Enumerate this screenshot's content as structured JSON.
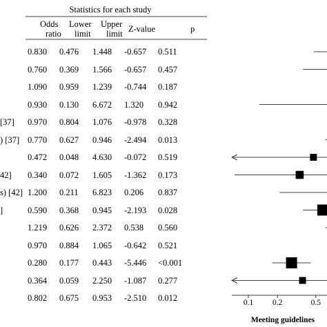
{
  "chart_data": {
    "type": "forest",
    "header": {
      "group_title": "Statistics for each study",
      "columns": [
        {
          "key": "odds_ratio",
          "lines": [
            "Odds",
            "ratio"
          ]
        },
        {
          "key": "lower",
          "lines": [
            "Lower",
            "limit"
          ]
        },
        {
          "key": "upper",
          "lines": [
            "Upper",
            "limit"
          ]
        },
        {
          "key": "z",
          "lines": [
            "Z-value"
          ]
        },
        {
          "key": "p",
          "lines": [
            "p"
          ]
        }
      ]
    },
    "rows": [
      {
        "label": "",
        "odds_ratio": "0.830",
        "lower": "0.476",
        "upper": "1.448",
        "z": "-0.657",
        "p": "0.511",
        "or": 0.83,
        "lo": 0.476,
        "hi": 1.448,
        "w": 1.0
      },
      {
        "label": "",
        "odds_ratio": "0.760",
        "lower": "0.369",
        "upper": "1.566",
        "z": "-0.657",
        "p": "0.457",
        "or": 0.76,
        "lo": 0.369,
        "hi": 1.566,
        "w": 0.85
      },
      {
        "label": "",
        "odds_ratio": "1.090",
        "lower": "0.959",
        "upper": "1.239",
        "z": "-0.744",
        "p": "0.187",
        "or": 1.09,
        "lo": 0.959,
        "hi": 1.239,
        "w": 1.0
      },
      {
        "label": "",
        "odds_ratio": "0.930",
        "lower": "0.130",
        "upper": "6.672",
        "z": "1.320",
        "p": "0.942",
        "or": 0.93,
        "lo": 0.13,
        "hi": 6.672,
        "w": 0.4
      },
      {
        "label": "[37]",
        "odds_ratio": "0.970",
        "lower": "0.804",
        "upper": "1.076",
        "z": "-0.978",
        "p": "0.328",
        "or": 0.97,
        "lo": 0.804,
        "hi": 1.076,
        "w": 0.5
      },
      {
        "label": ") [37]",
        "odds_ratio": "0.770",
        "lower": "0.627",
        "upper": "0.946",
        "z": "-2.494",
        "p": "0.013",
        "or": 0.77,
        "lo": 0.627,
        "hi": 0.946,
        "w": 0.9
      },
      {
        "label": "",
        "odds_ratio": "0.472",
        "lower": "0.048",
        "upper": "4.630",
        "z": "-0.072",
        "p": "0.519",
        "or": 0.472,
        "lo": 0.048,
        "hi": 4.63,
        "w": 0.45
      },
      {
        "label": "42]",
        "odds_ratio": "0.340",
        "lower": "0.072",
        "upper": "1.605",
        "z": "-1.362",
        "p": "0.173",
        "or": 0.34,
        "lo": 0.072,
        "hi": 1.605,
        "w": 0.6
      },
      {
        "label": "s) [42]",
        "odds_ratio": "1.200",
        "lower": "0.211",
        "upper": "6.823",
        "z": "0.206",
        "p": "0.837",
        "or": 1.2,
        "lo": 0.211,
        "hi": 6.823,
        "w": 0.4
      },
      {
        "label": "]",
        "odds_ratio": "0.590",
        "lower": "0.368",
        "upper": "0.945",
        "z": "-2.193",
        "p": "0.028",
        "or": 0.59,
        "lo": 0.368,
        "hi": 0.945,
        "w": 1.0
      },
      {
        "label": "",
        "odds_ratio": "1.219",
        "lower": "0.626",
        "upper": "2.372",
        "z": "0.538",
        "p": "0.560",
        "or": 1.219,
        "lo": 0.626,
        "hi": 2.372,
        "w": 0.8
      },
      {
        "label": "",
        "odds_ratio": "0.970",
        "lower": "0.884",
        "upper": "1.065",
        "z": "-0.642",
        "p": "0.521",
        "or": 0.97,
        "lo": 0.884,
        "hi": 1.065,
        "w": 0.9
      },
      {
        "label": "",
        "odds_ratio": "0.280",
        "lower": "0.177",
        "upper": "0.443",
        "z": "-5.446",
        "p": "<0.001",
        "or": 0.28,
        "lo": 0.177,
        "hi": 0.443,
        "w": 1.0
      },
      {
        "label": "",
        "odds_ratio": "0.364",
        "lower": "0.059",
        "upper": "2.250",
        "z": "-1.087",
        "p": "0.277",
        "or": 0.364,
        "lo": 0.059,
        "hi": 2.25,
        "w": 0.45
      },
      {
        "label": "",
        "odds_ratio": "0.802",
        "lower": "0.675",
        "upper": "0.953",
        "z": "-2.510",
        "p": "0.012",
        "or": 0.802,
        "lo": 0.675,
        "hi": 0.953,
        "summary": true
      }
    ],
    "x_axis": {
      "scale": "log",
      "ticks": [
        {
          "value": 0.1,
          "label": "0.1"
        },
        {
          "value": 0.2,
          "label": "0.2"
        },
        {
          "value": 0.5,
          "label": "0.5"
        }
      ],
      "xlabel": "Meeting guidelines"
    }
  }
}
